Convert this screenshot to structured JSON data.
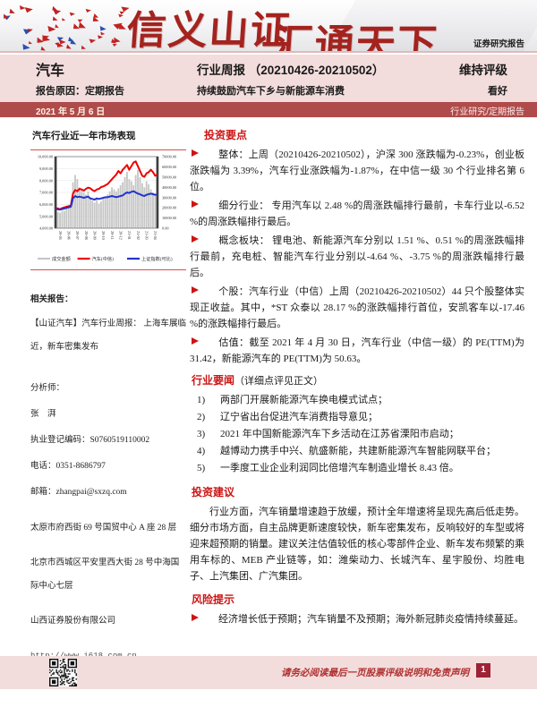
{
  "header": {
    "logo_left": "信义山证",
    "logo_right": "汇通天下",
    "report_tag": "证券研究报告"
  },
  "title_bar": {
    "industry": "汽车",
    "report_type": "行业周报 （20210426-20210502）",
    "rating_action": "维持评级",
    "reason": "报告原因：定期报告",
    "subtitle": "持续鼓励汽车下乡与新能源车消费",
    "rating": "看好",
    "date": "2021 年 5 月 6 日",
    "category": "行业研究/定期报告"
  },
  "sidebar": {
    "chart_title": "汽车行业近一年市场表现",
    "related_header": "相关报告：",
    "related_report": "【山证汽车】汽车行业周报： 上海车展临近，新车密集发布",
    "analyst_header": "分析师：",
    "analyst_name": "张　湃",
    "license": "执业登记编码：S0760519110002",
    "phone": "电话：0351-8686797",
    "email": "邮箱：zhangpai@sxzq.com",
    "address_taiyuan": "太原市府西街 69 号国贸中心 A 座 28 层",
    "address_beijing": "北京市西城区平安里西大街 28 号中海国际中心七层",
    "company": "山西证券股份有限公司",
    "website": "http://www.i618.com.cn"
  },
  "main": {
    "invest_header": "投资要点",
    "bullets": [
      "整体：上周（20210426-20210502），沪深 300 涨跌幅为-0.23%，创业板涨跌幅为 3.39%，汽车行业涨跌幅为-1.87%，在中信一级 30 个行业排名第 6 位。",
      "细分行业： 专用汽车以 2.48 %的周涨跌幅排行最前，卡车行业以-6.52 %的周涨跌幅排行最后。",
      "概念板块： 锂电池、新能源汽车分别以 1.51 %、0.51 %的周涨跌幅排行最前，充电桩、智能汽车行业分别以-4.64 %、-3.75 %的周涨跌幅排行最后。",
      "个股：汽车行业（中信）上周（20210426-20210502）44 只个股整体实现正收益。其中，*ST 众泰以 28.17 %的涨跌幅排行首位，安凯客车以-17.46 %的涨跌幅排行最后。",
      "估值：截至 2021 年 4 月 30 日，汽车行业（中信一级）的 PE(TTM)为 31.42，新能源汽车的 PE(TTM)为 50.63。"
    ],
    "news_header": "行业要闻",
    "news_note": "（详细点评见正文）",
    "news_numbers": [
      "1)",
      "2)",
      "3)",
      "4)",
      "5)"
    ],
    "news_items": [
      "两部门开展新能源汽车换电模式试点；",
      "辽宁省出台促进汽车消费指导意见；",
      "2021 年中国新能源汽车下乡活动在江苏省溧阳市启动；",
      "越博动力携手中兴、航盛新能，共建新能源汽车智能网联平台；",
      "一季度工业企业利润同比倍增汽车制造业增长 8.43 倍。"
    ],
    "advice_header": "投资建议",
    "advice_text": "行业方面，汽车销量增速趋于放缓，预计全年增速将呈现先高后低走势。细分市场方面，自主品牌更新速度较快，新车密集发布，反响较好的车型或将迎来超预期的销量。建议关注估值较低的核心零部件企业、新车发布频繁的乘用车标的、MEB 产业链等，如：潍柴动力、长城汽车、星宇股份、均胜电子、上汽集团、广汽集团。",
    "risk_header": "风险提示",
    "risk_text": "经济增长低于预期；汽车销量不及预期；海外新冠肺炎疫情持续蔓延。"
  },
  "footer": {
    "disclaimer": "请务必阅读最后一页股票评级说明和免责声明",
    "page": "1"
  },
  "colors": {
    "band_pink": "#f3dcdc",
    "bar_red": "#b04b4b",
    "header_red": "#cc1414",
    "logo_red": "#a5231f",
    "page_box_red": "#9e2235",
    "volume_gray": "#c6c6c6",
    "auto_line_red": "#ee0000",
    "index_line_blue": "#2233cc"
  },
  "chart_data": {
    "type": "combo",
    "title": "汽车行业近一年市场表现",
    "x_monthly_labels": [
      "20-05",
      "20-06",
      "20-07",
      "20-08",
      "20-09",
      "20-10",
      "20-11",
      "20-12",
      "21-01",
      "21-02",
      "21-03",
      "21-04"
    ],
    "left_axis": {
      "label": "指数点位",
      "min": 4000,
      "max": 10000,
      "step": 1000
    },
    "right_axis": {
      "label": "成交金额",
      "min": 0,
      "max": 70000,
      "step": 10000
    },
    "legend_position": "bottom",
    "grid": true,
    "series": [
      {
        "name": "成交金额",
        "type": "bar",
        "axis": "right",
        "color": "#c6c6c6",
        "values": [
          18000,
          16000,
          15000,
          17000,
          17000,
          19000,
          21000,
          23000,
          45000,
          52000,
          48000,
          40000,
          38000,
          35000,
          33000,
          36000,
          30000,
          27000,
          25000,
          28000,
          24000,
          26000,
          29000,
          31000,
          33000,
          36000,
          40000,
          38000,
          36000,
          39000,
          42000,
          45000,
          50000,
          55000,
          48000,
          46000,
          42000,
          52000,
          57000,
          50000,
          44000,
          40000,
          46000,
          43000,
          38000,
          35000,
          33000,
          30000
        ]
      },
      {
        "name": "汽车(中信)",
        "type": "line",
        "axis": "left",
        "color": "#ee0000",
        "values": [
          5700,
          5650,
          5600,
          5680,
          5750,
          5800,
          5850,
          5900,
          6900,
          7200,
          7100,
          7300,
          7250,
          7150,
          7300,
          7400,
          7350,
          7200,
          7100,
          7250,
          7300,
          7450,
          7500,
          7600,
          7700,
          7900,
          8100,
          8300,
          8500,
          8800,
          8600,
          8900,
          9100,
          9300,
          8900,
          9200,
          9500,
          9600,
          9200,
          8800,
          8400,
          8300,
          8600,
          8700,
          8900,
          8700,
          8400,
          8500
        ]
      },
      {
        "name": "上证指数(可比)",
        "type": "line",
        "axis": "left",
        "color": "#2233cc",
        "values": [
          5600,
          5580,
          5560,
          5600,
          5650,
          5700,
          5750,
          5800,
          6500,
          6700,
          6600,
          6650,
          6600,
          6550,
          6600,
          6650,
          6500,
          6450,
          6400,
          6500,
          6450,
          6500,
          6550,
          6600,
          6600,
          6650,
          6700,
          6650,
          6600,
          6650,
          6700,
          6750,
          6900,
          7000,
          6950,
          7050,
          7100,
          7000,
          6900,
          6850,
          6750,
          6700,
          6800,
          6850,
          6900,
          6850,
          6800,
          6820
        ]
      }
    ]
  }
}
